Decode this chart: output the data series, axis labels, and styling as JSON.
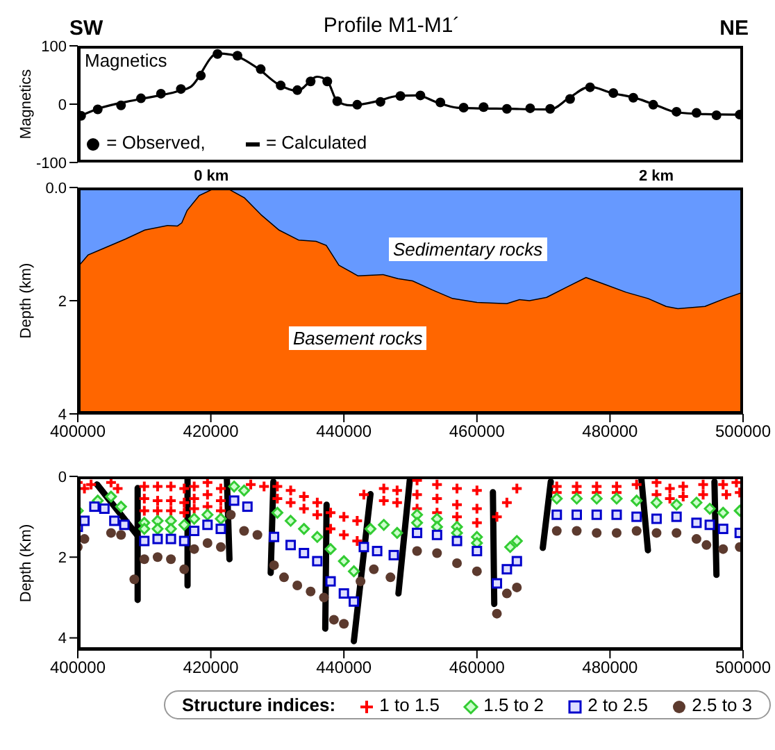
{
  "chart_data": [
    {
      "type": "line",
      "title": "Profile M1-M1´",
      "ylabel": "Magnetics",
      "annotations": [
        "SW",
        "NE",
        "Magnetics"
      ],
      "xlim": [
        400000,
        500000
      ],
      "ylim": [
        -100,
        100
      ],
      "yticks": [
        -100,
        0,
        100
      ],
      "tick_labels": "y",
      "legend": "bottom left",
      "series": [
        {
          "name": "= Observed,",
          "type": "scatter",
          "marker": "circle",
          "color": "#000000",
          "x": [
            400500,
            403000,
            406500,
            409500,
            412500,
            415500,
            418500,
            421000,
            424000,
            427500,
            430500,
            433000,
            435000,
            437500,
            439000,
            442000,
            445500,
            448500,
            451500,
            454500,
            458000,
            461000,
            464500,
            468000,
            471000,
            474000,
            477000,
            480500,
            483500,
            486500,
            490000,
            493000,
            496000,
            499500
          ],
          "values": [
            -20,
            -9,
            -2,
            10,
            18,
            26,
            49,
            86,
            83,
            60,
            32,
            24,
            39,
            39,
            5,
            -1,
            4,
            14,
            15,
            3,
            -6,
            -5,
            -8,
            -7,
            -8,
            9,
            29,
            19,
            11,
            -1,
            -13,
            -15,
            -19,
            -18
          ]
        },
        {
          "name": "= Calculated",
          "type": "line",
          "marker": "none",
          "color": "#000000",
          "x": [
            400000,
            403000,
            409000,
            415000,
            417000,
            421000,
            423000,
            427000,
            430000,
            433000,
            436000,
            437500,
            439000,
            441000,
            445000,
            448000,
            451000,
            454000,
            457000,
            465000,
            471000,
            474000,
            477000,
            480000,
            484000,
            487000,
            490000,
            494000,
            500000
          ],
          "values": [
            -22,
            -8,
            8,
            22,
            30,
            87,
            85,
            62,
            35,
            23,
            47,
            40,
            5,
            -2,
            5,
            14,
            15,
            3,
            -6,
            -8,
            -9,
            12,
            30,
            20,
            10,
            -2,
            -14,
            -17,
            -18
          ]
        }
      ]
    },
    {
      "type": "area",
      "stacked": true,
      "ylabel": "Depth (km)",
      "xlim": [
        400000,
        500000
      ],
      "xticks": [
        400000,
        420000,
        440000,
        460000,
        480000,
        500000
      ],
      "ylim": [
        4,
        0
      ],
      "yticks": [
        {
          "value": 0,
          "label": "0.0"
        },
        2,
        4
      ],
      "x2lim": [
        -0.6,
        2.39
      ],
      "x2ticks": [
        {
          "value": 0,
          "label": "0 km"
        },
        {
          "value": 2,
          "label": "2 km"
        }
      ],
      "x": [
        400000,
        401600,
        404200,
        407200,
        410100,
        413500,
        415000,
        415700,
        416500,
        418300,
        420600,
        422400,
        425000,
        427600,
        430200,
        433200,
        435800,
        437300,
        439200,
        442100,
        445900,
        448100,
        450300,
        453300,
        456300,
        460000,
        464500,
        466400,
        467900,
        470500,
        473500,
        476400,
        479400,
        482400,
        485700,
        488400,
        490200,
        494300,
        497300,
        500000
      ],
      "series": [
        {
          "name": "Sedimentary rocks",
          "color": "#6699ff",
          "values": [
            1.42,
            1.2,
            1.07,
            0.92,
            0.76,
            0.68,
            0.69,
            0.63,
            0.41,
            0.15,
            0.02,
            0.02,
            0.19,
            0.5,
            0.76,
            0.94,
            0.96,
            1.03,
            1.38,
            1.57,
            1.55,
            1.62,
            1.66,
            1.82,
            1.97,
            2.04,
            2.06,
            1.99,
            2.01,
            1.95,
            1.77,
            1.6,
            1.73,
            1.86,
            1.97,
            2.11,
            2.15,
            2.11,
            1.97,
            1.86
          ]
        },
        {
          "name": "Basement rocks",
          "color": "#ff6600",
          "values": [
            2.58,
            2.8,
            2.93,
            3.08,
            3.24,
            3.32,
            3.31,
            3.37,
            3.59,
            3.85,
            3.98,
            3.98,
            3.81,
            3.5,
            3.24,
            3.06,
            3.04,
            2.97,
            2.62,
            2.43,
            2.45,
            2.38,
            2.34,
            2.18,
            2.03,
            1.96,
            1.94,
            2.01,
            1.99,
            2.05,
            2.23,
            2.4,
            2.27,
            2.14,
            2.03,
            1.89,
            1.85,
            1.89,
            2.03,
            2.14
          ]
        }
      ]
    },
    {
      "type": "scatter",
      "ylabel": "Depth (Km)",
      "xlim": [
        400000,
        500000
      ],
      "xticks": [
        400000,
        420000,
        440000,
        460000,
        480000,
        500000
      ],
      "ylim": [
        4.3,
        0
      ],
      "yticks": [
        0,
        2,
        4
      ],
      "legend": "bottom",
      "legend_title": "Structure indices:",
      "series": [
        {
          "name": "1 to 1.5",
          "marker": "cross",
          "color": "#ff0000",
          "x": [
            400000,
            401000,
            402000,
            405000,
            406000,
            410000,
            412000,
            414000,
            416000,
            410000,
            412000,
            414000,
            416000,
            410000,
            412000,
            414000,
            416000,
            417500,
            419500,
            421500,
            417500,
            419500,
            421500,
            417500,
            419500,
            421500,
            426000,
            428000,
            430000,
            432000,
            434000,
            436000,
            430000,
            432000,
            434000,
            436000,
            438000,
            440000,
            442000,
            438000,
            440000,
            442000,
            443000,
            446000,
            448000,
            446000,
            448000,
            451000,
            454000,
            457000,
            460000,
            451000,
            454000,
            457000,
            460000,
            451000,
            454000,
            457000,
            460000,
            463000,
            464500,
            466000,
            472000,
            475000,
            478000,
            481000,
            484000,
            472000,
            475000,
            478000,
            481000,
            487000,
            489000,
            491000,
            494000,
            487000,
            489000,
            491000,
            494000,
            497000,
            499000,
            497500,
            499500
          ],
          "values": [
            0.15,
            0.3,
            0.2,
            0.15,
            0.3,
            0.25,
            0.25,
            0.25,
            0.3,
            0.55,
            0.6,
            0.6,
            0.65,
            0.85,
            0.85,
            0.85,
            0.9,
            0.25,
            0.15,
            0.3,
            0.55,
            0.45,
            0.6,
            0.8,
            0.75,
            0.85,
            0.2,
            0.25,
            0.25,
            0.35,
            0.5,
            0.65,
            0.55,
            0.65,
            0.8,
            0.95,
            0.9,
            1.0,
            1.1,
            1.3,
            1.45,
            1.6,
            0.45,
            0.3,
            0.35,
            0.6,
            0.65,
            0.1,
            0.2,
            0.3,
            0.35,
            0.45,
            0.55,
            0.7,
            0.8,
            0.8,
            0.9,
            1.0,
            1.15,
            1.0,
            0.65,
            0.3,
            0.25,
            0.25,
            0.25,
            0.25,
            0.2,
            0.4,
            0.4,
            0.4,
            0.4,
            0.15,
            0.3,
            0.25,
            0.2,
            0.45,
            0.55,
            0.5,
            0.45,
            0.2,
            0.15,
            0.45,
            0.4
          ]
        },
        {
          "name": "1.5 to 2",
          "marker": "diamond",
          "color": "#33cc33",
          "x": [
            400000,
            403000,
            405000,
            406500,
            410000,
            412000,
            414000,
            416000,
            410000,
            412000,
            414000,
            417500,
            419500,
            421500,
            423500,
            425000,
            430000,
            432000,
            434000,
            436000,
            438000,
            440000,
            441500,
            444000,
            446000,
            448000,
            451000,
            454000,
            457000,
            460000,
            451000,
            454000,
            457000,
            460000,
            465000,
            466000,
            472000,
            475000,
            478000,
            481000,
            484000,
            487000,
            490000,
            493000,
            495000,
            497000,
            499500
          ],
          "values": [
            0.85,
            0.6,
            0.5,
            0.75,
            1.15,
            1.1,
            1.1,
            1.2,
            1.3,
            1.3,
            1.3,
            1.05,
            0.95,
            1.05,
            0.25,
            0.35,
            0.9,
            1.1,
            1.3,
            1.5,
            1.8,
            2.1,
            2.35,
            1.3,
            1.2,
            1.4,
            0.95,
            1.05,
            1.25,
            1.5,
            1.15,
            1.25,
            1.4,
            1.65,
            1.75,
            1.6,
            0.55,
            0.55,
            0.55,
            0.55,
            0.6,
            0.65,
            0.7,
            0.65,
            0.8,
            0.9,
            0.85
          ]
        },
        {
          "name": "2  to 2.5",
          "marker": "square",
          "color": "#0000cc",
          "x": [
            400000,
            401000,
            402500,
            404000,
            405500,
            407000,
            410000,
            412000,
            414000,
            416000,
            417500,
            419500,
            421500,
            423500,
            425500,
            429500,
            432000,
            434000,
            436000,
            438000,
            440000,
            441500,
            443000,
            445000,
            447500,
            451000,
            454000,
            457000,
            460000,
            463000,
            464500,
            466000,
            472000,
            475000,
            478000,
            481000,
            484000,
            487000,
            490000,
            493000,
            495000,
            497000,
            499500
          ],
          "values": [
            1.25,
            1.1,
            0.75,
            0.8,
            1.1,
            1.2,
            1.6,
            1.55,
            1.55,
            1.6,
            1.35,
            1.2,
            1.3,
            0.6,
            0.75,
            1.5,
            1.7,
            1.9,
            2.1,
            2.6,
            2.9,
            3.1,
            1.75,
            1.85,
            1.95,
            1.4,
            1.45,
            1.6,
            1.85,
            2.65,
            2.3,
            2.1,
            0.95,
            0.95,
            0.95,
            0.95,
            1.0,
            1.05,
            1.0,
            1.15,
            1.2,
            1.3,
            1.4
          ]
        },
        {
          "name": "2.5 to 3",
          "marker": "circle",
          "color": "#5c3a2e",
          "x": [
            400000,
            401000,
            405000,
            406500,
            408500,
            410000,
            412000,
            414000,
            416000,
            417500,
            419500,
            421500,
            423000,
            425000,
            427000,
            429500,
            431000,
            433000,
            435000,
            437000,
            438500,
            440000,
            442500,
            444500,
            447000,
            451000,
            454000,
            457000,
            460000,
            463000,
            464500,
            466000,
            472000,
            475000,
            478000,
            481000,
            484000,
            487000,
            490000,
            493000,
            494500,
            497000,
            499500
          ],
          "values": [
            1.75,
            1.55,
            1.4,
            1.45,
            2.55,
            2.05,
            2.0,
            2.05,
            2.3,
            1.8,
            1.65,
            1.75,
            0.95,
            1.35,
            1.45,
            2.2,
            2.5,
            2.7,
            2.85,
            3.0,
            3.55,
            3.65,
            2.6,
            2.3,
            2.5,
            1.85,
            1.9,
            2.15,
            2.35,
            3.4,
            2.9,
            2.75,
            1.35,
            1.35,
            1.4,
            1.4,
            1.35,
            1.4,
            1.4,
            1.55,
            1.7,
            1.8,
            1.75
          ]
        },
        {
          "type": "line",
          "marker": "none",
          "color": "#000000",
          "x": [
            402900,
            409000
          ],
          "values": [
            0.2,
            1.47
          ]
        },
        {
          "type": "line",
          "marker": "none",
          "color": "#000000",
          "x": [
            409000,
            409000
          ],
          "values": [
            0.29,
            3.06
          ]
        },
        {
          "type": "line",
          "marker": "none",
          "color": "#000000",
          "x": [
            416500,
            416500
          ],
          "values": [
            0.03,
            2.7
          ]
        },
        {
          "type": "line",
          "marker": "none",
          "color": "#000000",
          "x": [
            422400,
            422800
          ],
          "values": [
            0,
            2.05
          ]
        },
        {
          "type": "line",
          "marker": "none",
          "color": "#000000",
          "x": [
            429400,
            429000
          ],
          "values": [
            0.13,
            2.39
          ]
        },
        {
          "type": "line",
          "marker": "none",
          "color": "#000000",
          "x": [
            437400,
            437200
          ],
          "values": [
            0.7,
            3.77
          ]
        },
        {
          "type": "line",
          "marker": "none",
          "color": "#000000",
          "x": [
            441500,
            444000
          ],
          "values": [
            4.08,
            0.44
          ]
        },
        {
          "type": "line",
          "marker": "none",
          "color": "#000000",
          "x": [
            449900,
            448200
          ],
          "values": [
            0.1,
            2.9
          ]
        },
        {
          "type": "line",
          "marker": "none",
          "color": "#000000",
          "x": [
            462400,
            462600
          ],
          "values": [
            0.39,
            3.16
          ]
        },
        {
          "type": "line",
          "marker": "none",
          "color": "#000000",
          "x": [
            471100,
            469900
          ],
          "values": [
            0.13,
            1.77
          ]
        },
        {
          "type": "line",
          "marker": "none",
          "color": "#000000",
          "x": [
            484700,
            485700
          ],
          "values": [
            0.03,
            1.83
          ]
        },
        {
          "type": "line",
          "marker": "none",
          "color": "#000000",
          "x": [
            495700,
            496000
          ],
          "values": [
            0.13,
            2.44
          ]
        }
      ]
    }
  ]
}
